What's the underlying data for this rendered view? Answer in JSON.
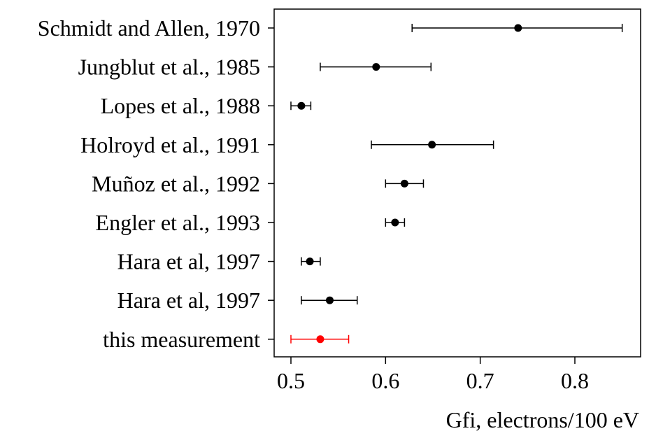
{
  "chart_data": {
    "type": "scatter",
    "subtype": "forest-plot-with-horizontal-error-bars",
    "xlabel": "Gfi, electrons/100 eV",
    "xlim": [
      0.48,
      0.865
    ],
    "xticks": [
      0.5,
      0.6,
      0.7,
      0.8
    ],
    "xtick_labels": [
      "0.5",
      "0.6",
      "0.7",
      "0.8"
    ],
    "grid": false,
    "legend": "none",
    "points": [
      {
        "label": "Schmidt and Allen, 1970",
        "value": 0.74,
        "low": 0.628,
        "high": 0.85,
        "color": "#000000"
      },
      {
        "label": "Jungblut et al., 1985",
        "value": 0.59,
        "low": 0.531,
        "high": 0.648,
        "color": "#000000"
      },
      {
        "label": "Lopes et al., 1988",
        "value": 0.511,
        "low": 0.5,
        "high": 0.521,
        "color": "#000000"
      },
      {
        "label": "Holroyd et al., 1991",
        "value": 0.649,
        "low": 0.585,
        "high": 0.714,
        "color": "#000000"
      },
      {
        "label": "Muñoz et al., 1992",
        "value": 0.62,
        "low": 0.6,
        "high": 0.64,
        "color": "#000000"
      },
      {
        "label": "Engler et al., 1993",
        "value": 0.61,
        "low": 0.6,
        "high": 0.62,
        "color": "#000000"
      },
      {
        "label": "Hara et al, 1997",
        "value": 0.52,
        "low": 0.511,
        "high": 0.531,
        "color": "#000000"
      },
      {
        "label": "Hara et al, 1997",
        "value": 0.541,
        "low": 0.511,
        "high": 0.57,
        "color": "#000000"
      },
      {
        "label": "this measurement",
        "value": 0.531,
        "low": 0.5,
        "high": 0.561,
        "color": "#ff0000"
      }
    ]
  }
}
